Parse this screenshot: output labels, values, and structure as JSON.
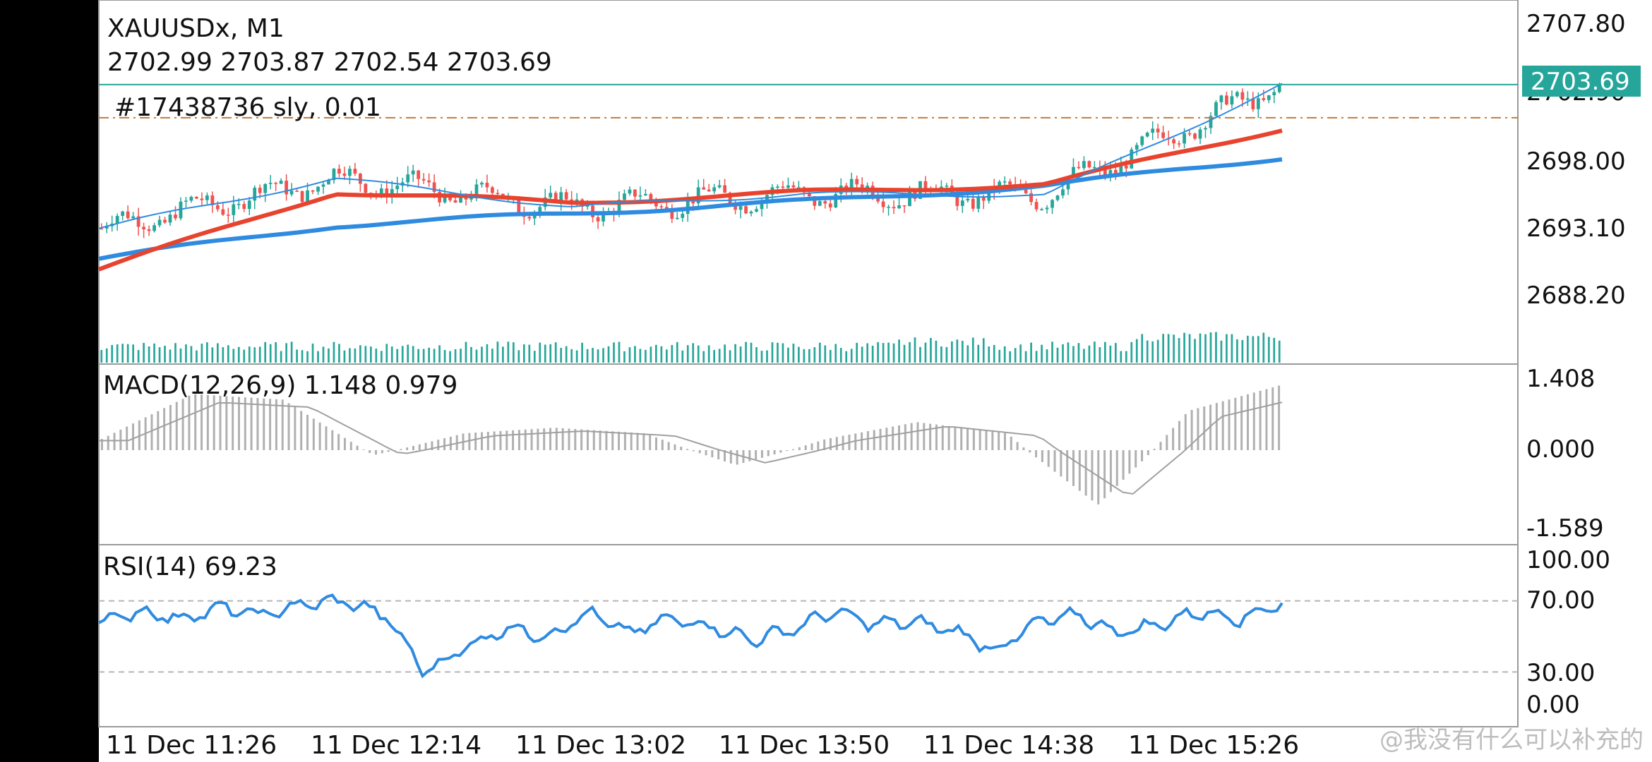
{
  "header": {
    "symbol_tf": "XAUUSDx, M1",
    "ohlc": "2702.99 2703.87 2702.54 2703.69",
    "order_label": "#17438736 sly, 0.01"
  },
  "price_axis": {
    "labels": [
      "2707.80",
      "2702.90",
      "2698.00",
      "2693.10",
      "2688.20"
    ],
    "current_price_label": "2703.69"
  },
  "macd": {
    "label": "MACD(12,26,9) 1.148 0.979",
    "axis_labels": [
      "1.408",
      "0.000",
      "-1.589"
    ]
  },
  "rsi": {
    "label": "RSI(14) 69.23",
    "axis_labels": [
      "100.00",
      "70.00",
      "30.00",
      "0.00"
    ]
  },
  "time_axis": {
    "labels": [
      "11 Dec 11:26",
      "11 Dec 12:14",
      "11 Dec 13:02",
      "11 Dec 13:50",
      "11 Dec 14:38",
      "11 Dec 15:26"
    ]
  },
  "watermark": "@我没有什么可以补充的",
  "colors": {
    "bull": "#26a69a",
    "bear": "#ef5350",
    "ma_fast": "#e8432e",
    "ma_slow": "#2f8be0",
    "price_line": "#26a69a",
    "order_line": "#c77a3a",
    "macd_hist": "#b0b0b0",
    "rsi_line": "#2f8be0"
  },
  "chart_data": {
    "type": "line",
    "title": "XAUUSDx, M1",
    "ylim": [
      2686,
      2708.8
    ],
    "x": [
      "11 Dec 11:26",
      "11 Dec 12:14",
      "11 Dec 13:02",
      "11 Dec 13:50",
      "11 Dec 14:38",
      "11 Dec 15:26"
    ],
    "series": [
      {
        "values": [
          2694.2,
          2697.5,
          2695.6,
          2696.5,
          2696.4,
          2703.7
        ]
      },
      {
        "values": [
          2691.5,
          2696.6,
          2695.9,
          2696.6,
          2697.1,
          2700.8
        ]
      },
      {
        "values": [
          2692.2,
          2694.4,
          2695.2,
          2696.0,
          2697.0,
          2698.9
        ]
      }
    ],
    "last_price": 2703.69,
    "order_price": 2701.5,
    "macd_series": [
      0.2,
      1.0,
      0.9,
      -0.1,
      0.3,
      0.4,
      0.3,
      -0.3,
      0.2,
      0.5,
      0.3,
      -1.1,
      0.7,
      1.15
    ],
    "macd_ylim": [
      -1.589,
      1.408
    ],
    "rsi_series": [
      58,
      64,
      60,
      66,
      62,
      68,
      70,
      62,
      30,
      44,
      55,
      50,
      63,
      52,
      60,
      56,
      48,
      54,
      64,
      57,
      58,
      53,
      42,
      58,
      62,
      52,
      57,
      64,
      60,
      69.23
    ],
    "rsi_ylim": [
      0,
      100
    ],
    "rsi_levels": [
      70,
      30
    ]
  }
}
